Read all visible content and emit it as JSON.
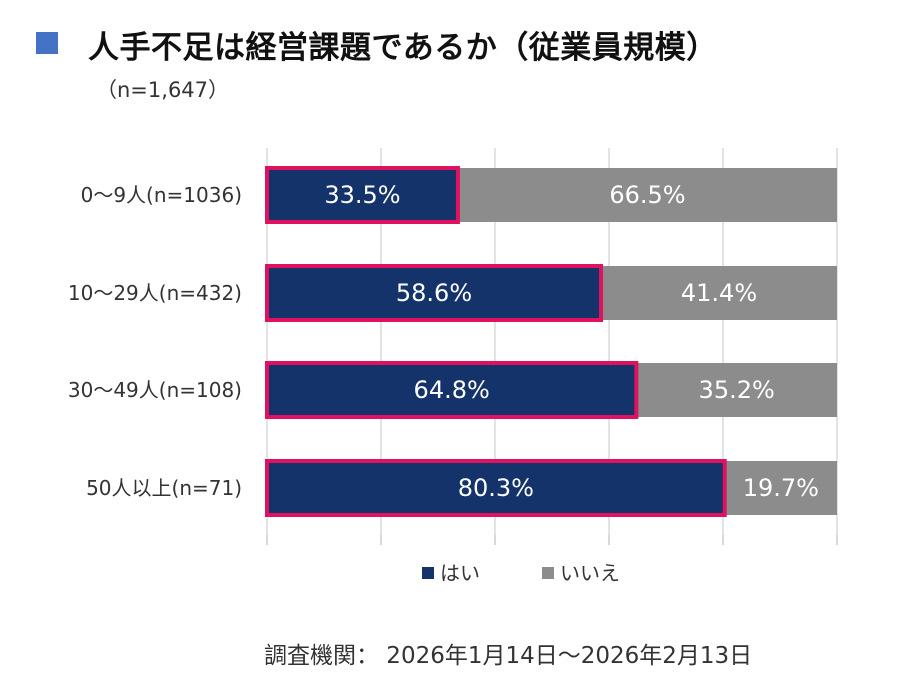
{
  "title": "人手不足は経営課題であるか（従業員規模）",
  "subtitle": "（n=1,647）",
  "source": "調査機関： 2026年1月14日～2026年2月13日",
  "colors": {
    "yes": "#14336b",
    "no": "#8c8c8c",
    "highlight": "#e0115f",
    "title_marker": "#4472c4"
  },
  "chart_data": {
    "type": "bar",
    "orientation": "horizontal",
    "stacked": true,
    "unit": "%",
    "xlim": [
      0,
      100
    ],
    "grid": true,
    "legend_position": "bottom",
    "categories": [
      "0～9人(n=1036)",
      "10～29人(n=432)",
      "30～49人(n=108)",
      "50人以上(n=71)"
    ],
    "series": [
      {
        "name": "はい",
        "values": [
          33.5,
          58.6,
          64.8,
          80.3
        ],
        "labels": [
          "33.5%",
          "58.6%",
          "64.8%",
          "80.3%"
        ]
      },
      {
        "name": "いいえ",
        "values": [
          66.5,
          41.4,
          35.2,
          19.7
        ],
        "labels": [
          "66.5%",
          "41.4%",
          "35.2%",
          "19.7%"
        ]
      }
    ]
  }
}
